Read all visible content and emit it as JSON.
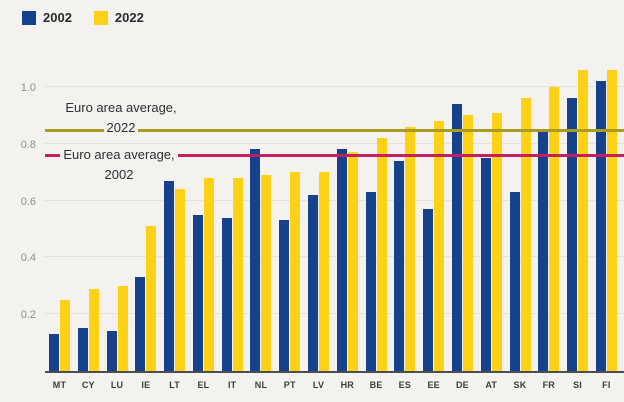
{
  "colors": {
    "background": "#f3f2ee",
    "bar_2002": "#16418c",
    "bar_2022": "#fdd216",
    "avg_line_2022": "#ab9b24",
    "avg_line_2002": "#c51f63",
    "gridline": "#e1e0db",
    "axis_line": "#4d4d4d"
  },
  "legend": {
    "items": [
      {
        "label": "2002",
        "color": "#16418c"
      },
      {
        "label": "2022",
        "color": "#fdd216"
      }
    ]
  },
  "annotations": {
    "avg2022": {
      "line1": "Euro area average,",
      "line2": "2022",
      "value": 0.85,
      "color": "#ab9b24"
    },
    "avg2002": {
      "line1": "Euro area average,",
      "line2": "2002",
      "value": 0.76,
      "color": "#c51f63"
    }
  },
  "chart_data": {
    "type": "bar",
    "title": "",
    "xlabel": "",
    "ylabel": "",
    "categories": [
      "MT",
      "CY",
      "LU",
      "IE",
      "LT",
      "EL",
      "IT",
      "NL",
      "PT",
      "LV",
      "HR",
      "BE",
      "ES",
      "EE",
      "DE",
      "AT",
      "SK",
      "FR",
      "SI",
      "FI"
    ],
    "series": [
      {
        "name": "2002",
        "color": "#16418c",
        "values": [
          0.13,
          0.15,
          0.14,
          0.33,
          0.67,
          0.55,
          0.54,
          0.78,
          0.53,
          0.62,
          0.78,
          0.63,
          0.74,
          0.57,
          0.94,
          0.75,
          0.63,
          0.84,
          0.96,
          1.02
        ]
      },
      {
        "name": "2022",
        "color": "#fdd216",
        "values": [
          0.25,
          0.29,
          0.3,
          0.51,
          0.64,
          0.68,
          0.68,
          0.69,
          0.7,
          0.7,
          0.77,
          0.82,
          0.86,
          0.88,
          0.9,
          0.91,
          0.96,
          1.0,
          1.06,
          1.06
        ]
      }
    ],
    "ylim": [
      0,
      1.1
    ],
    "yticks": [
      {
        "label": "0.2",
        "value": 0.2
      },
      {
        "label": "0.4",
        "value": 0.4
      },
      {
        "label": "0.6",
        "value": 0.6
      },
      {
        "label": "0.8",
        "value": 0.8
      },
      {
        "label": "1.0",
        "value": 1.0
      }
    ],
    "grid": true,
    "legend_position": "top-left",
    "reference_lines": [
      {
        "label": "Euro area average, 2022",
        "value": 0.85,
        "color": "#ab9b24"
      },
      {
        "label": "Euro area average, 2002",
        "value": 0.76,
        "color": "#c51f63"
      }
    ]
  }
}
